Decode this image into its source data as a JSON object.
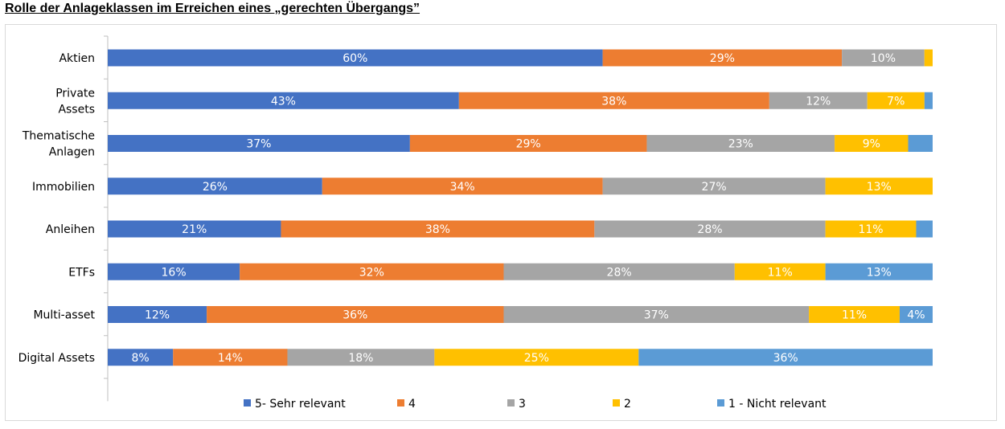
{
  "title": "Rolle der Anlageklassen im Erreichen eines „gerechten Übergangs”",
  "chart_data": {
    "type": "bar",
    "orientation": "horizontal",
    "stacked": true,
    "percent_stacked": true,
    "categories": [
      [
        "Aktien"
      ],
      [
        "Private",
        "Assets"
      ],
      [
        "Thematische",
        "Anlagen"
      ],
      [
        "Immobilien"
      ],
      [
        "Anleihen"
      ],
      [
        "ETFs"
      ],
      [
        "Multi-asset"
      ],
      [
        "Digital Assets"
      ]
    ],
    "series": [
      {
        "name": "5- Sehr relevant",
        "color": "#4472c4",
        "values": [
          60,
          43,
          37,
          26,
          21,
          16,
          12,
          8
        ],
        "labels": [
          "60%",
          "43%",
          "37%",
          "26%",
          "21%",
          "16%",
          "12%",
          "8%"
        ]
      },
      {
        "name": "4",
        "color": "#ed7d31",
        "values": [
          29,
          38,
          29,
          34,
          38,
          32,
          36,
          14
        ],
        "labels": [
          "29%",
          "38%",
          "29%",
          "34%",
          "38%",
          "32%",
          "36%",
          "14%"
        ]
      },
      {
        "name": "3",
        "color": "#a5a5a5",
        "values": [
          10,
          12,
          23,
          27,
          28,
          28,
          37,
          18
        ],
        "labels": [
          "10%",
          "12%",
          "23%",
          "27%",
          "28%",
          "28%",
          "37%",
          "18%"
        ]
      },
      {
        "name": "2",
        "color": "#ffc000",
        "values": [
          1,
          7,
          9,
          13,
          11,
          11,
          11,
          25
        ],
        "labels": [
          "",
          "7%",
          "9%",
          "13%",
          "11%",
          "11%",
          "11%",
          "25%"
        ]
      },
      {
        "name": "1 - Nicht relevant",
        "color": "#5b9bd5",
        "values": [
          0,
          1,
          3,
          0,
          2,
          13,
          4,
          36
        ],
        "labels": [
          "",
          "",
          "",
          "",
          "",
          "13%",
          "4%",
          "36%"
        ]
      }
    ],
    "legend_position": "bottom",
    "grid": false
  }
}
